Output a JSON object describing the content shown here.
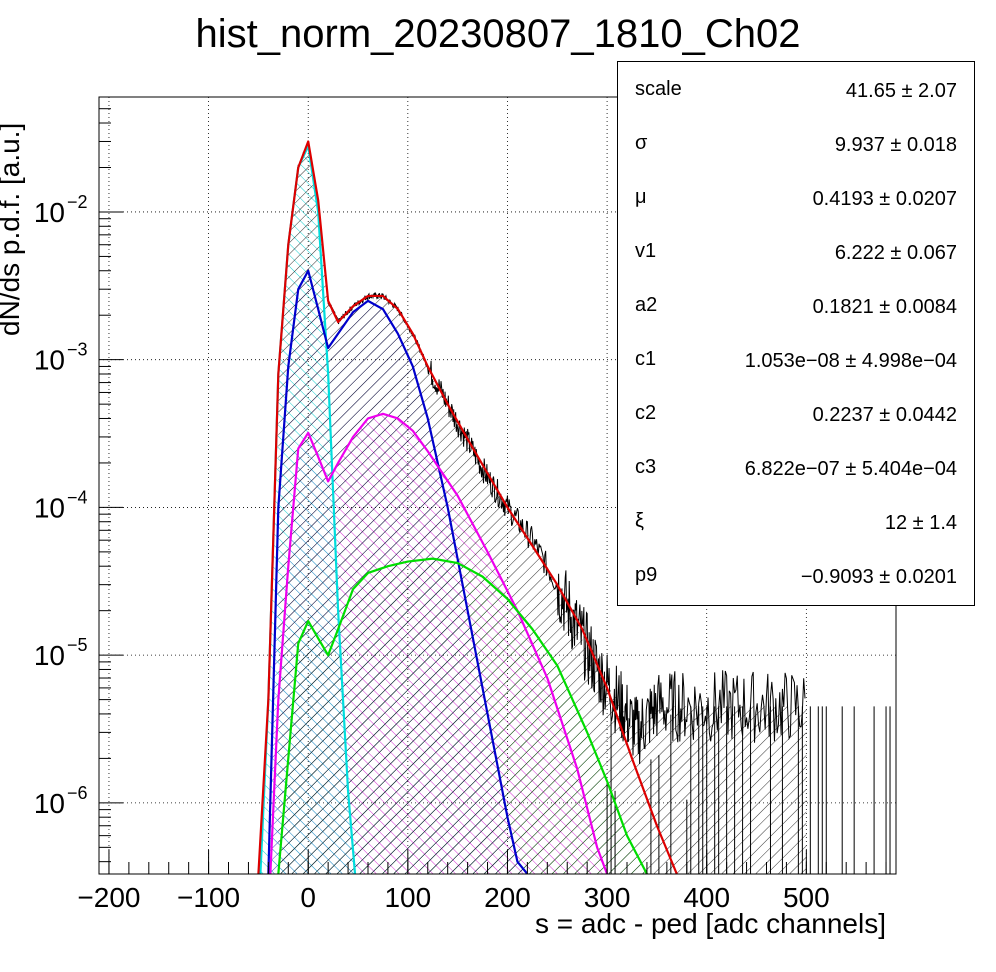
{
  "chart_data": {
    "type": "line",
    "title": "hist_norm_20230807_1810_Ch02",
    "xlabel": "s = adc - ped [adc channels]",
    "ylabel": "dN/ds p.d.f. [a.u.]",
    "xlim": [
      -210,
      590
    ],
    "ylim": [
      3.3e-07,
      0.06
    ],
    "yscale": "log",
    "grid": true,
    "x_ticks": [
      -200,
      -100,
      0,
      100,
      200,
      300,
      400,
      500
    ],
    "y_ticks": [
      {
        "value": 1e-06,
        "label": "10",
        "exp": "−6"
      },
      {
        "value": 1e-05,
        "label": "10",
        "exp": "−5"
      },
      {
        "value": 0.0001,
        "label": "10",
        "exp": "−4"
      },
      {
        "value": 0.001,
        "label": "10",
        "exp": "−3"
      },
      {
        "value": 0.01,
        "label": "10",
        "exp": "−2"
      }
    ],
    "series": [
      {
        "color": "#000000",
        "style": "histogram",
        "x": [
          -30,
          -20,
          -10,
          0,
          10,
          20,
          30,
          45,
          60,
          75,
          90,
          105,
          120,
          140,
          160,
          180,
          200,
          225,
          250,
          270,
          290,
          310,
          330,
          350,
          380,
          420,
          460,
          500
        ],
        "y": [
          0.0008,
          0.006,
          0.02,
          0.029,
          0.012,
          0.0025,
          0.0018,
          0.0023,
          0.0027,
          0.0027,
          0.0022,
          0.0015,
          0.0009,
          0.0005,
          0.00028,
          0.00016,
          0.0001,
          6e-05,
          3e-05,
          1.5e-05,
          8e-06,
          5e-06,
          3e-06,
          4.5e-06,
          4.5e-06,
          4.5e-06,
          4.5e-06,
          4.5e-06
        ]
      },
      {
        "color": "#dd0000",
        "style": "line",
        "x": [
          -50,
          -40,
          -30,
          -20,
          -10,
          0,
          10,
          20,
          30,
          45,
          60,
          75,
          90,
          105,
          120,
          140,
          160,
          180,
          200,
          225,
          250,
          275,
          300,
          325,
          350,
          370
        ],
        "y": [
          3.3e-07,
          5e-06,
          0.0008,
          0.006,
          0.02,
          0.03,
          0.012,
          0.0025,
          0.0018,
          0.0023,
          0.0027,
          0.0027,
          0.0022,
          0.0015,
          0.0009,
          0.0005,
          0.00029,
          0.00017,
          0.0001,
          5.5e-05,
          3e-05,
          1.5e-05,
          6e-06,
          2e-06,
          7e-07,
          3.3e-07
        ]
      },
      {
        "color": "#00dddd",
        "style": "line",
        "x": [
          -48,
          -40,
          -30,
          -20,
          -10,
          0,
          10,
          20,
          30,
          40,
          47
        ],
        "y": [
          3.3e-07,
          5e-06,
          0.0008,
          0.006,
          0.02,
          0.028,
          0.01,
          0.0008,
          2e-05,
          1.2e-06,
          3.3e-07
        ]
      },
      {
        "color": "#0000cc",
        "style": "line",
        "x": [
          -40,
          -30,
          -20,
          -10,
          0,
          10,
          20,
          30,
          45,
          60,
          75,
          90,
          105,
          120,
          140,
          160,
          180,
          200,
          210,
          220
        ],
        "y": [
          3.3e-07,
          0.0001,
          0.0009,
          0.003,
          0.004,
          0.0022,
          0.0012,
          0.0015,
          0.0021,
          0.0025,
          0.0022,
          0.0015,
          0.0009,
          0.0004,
          0.0001,
          2e-05,
          4e-06,
          8e-07,
          4e-07,
          3.3e-07
        ]
      },
      {
        "color": "#ee00ee",
        "style": "line",
        "x": [
          -38,
          -30,
          -20,
          -10,
          0,
          10,
          20,
          30,
          45,
          60,
          75,
          90,
          105,
          120,
          150,
          180,
          210,
          240,
          270,
          290,
          300
        ],
        "y": [
          3.3e-07,
          5e-06,
          4e-05,
          0.00025,
          0.00032,
          0.00022,
          0.00015,
          0.0002,
          0.0003,
          0.0004,
          0.00043,
          0.0004,
          0.00033,
          0.00024,
          0.00012,
          5e-05,
          2e-05,
          7e-06,
          1.7e-06,
          5e-07,
          3.3e-07
        ]
      },
      {
        "color": "#00dd00",
        "style": "line",
        "x": [
          -30,
          -20,
          -10,
          0,
          10,
          20,
          30,
          45,
          60,
          80,
          100,
          125,
          150,
          175,
          200,
          225,
          250,
          280,
          300,
          320,
          340
        ],
        "y": [
          3.3e-07,
          2e-06,
          1.2e-05,
          1.7e-05,
          1.3e-05,
          1e-05,
          1.5e-05,
          2.8e-05,
          3.6e-05,
          4e-05,
          4.3e-05,
          4.5e-05,
          4.2e-05,
          3.4e-05,
          2.4e-05,
          1.5e-05,
          8.5e-06,
          3e-06,
          1.4e-06,
          6e-07,
          3.3e-07
        ]
      }
    ]
  },
  "stats": {
    "rows": [
      {
        "name": "scale",
        "value": "41.65 ± 2.07"
      },
      {
        "name": "σ",
        "value": "9.937 ± 0.018"
      },
      {
        "name": "μ",
        "value": "0.4193 ± 0.0207"
      },
      {
        "name": "v1",
        "value": "6.222 ± 0.067"
      },
      {
        "name": "a2",
        "value": "0.1821 ± 0.0084"
      },
      {
        "name": "c1",
        "value": "1.053e−08 ± 4.998e−04"
      },
      {
        "name": "c2",
        "value": "0.2237 ± 0.0442"
      },
      {
        "name": "c3",
        "value": "6.822e−07 ± 5.404e−04"
      },
      {
        "name": "ξ",
        "value": "12 ± 1.4"
      },
      {
        "name": "p9",
        "value": "−0.9093 ± 0.0201"
      }
    ]
  }
}
